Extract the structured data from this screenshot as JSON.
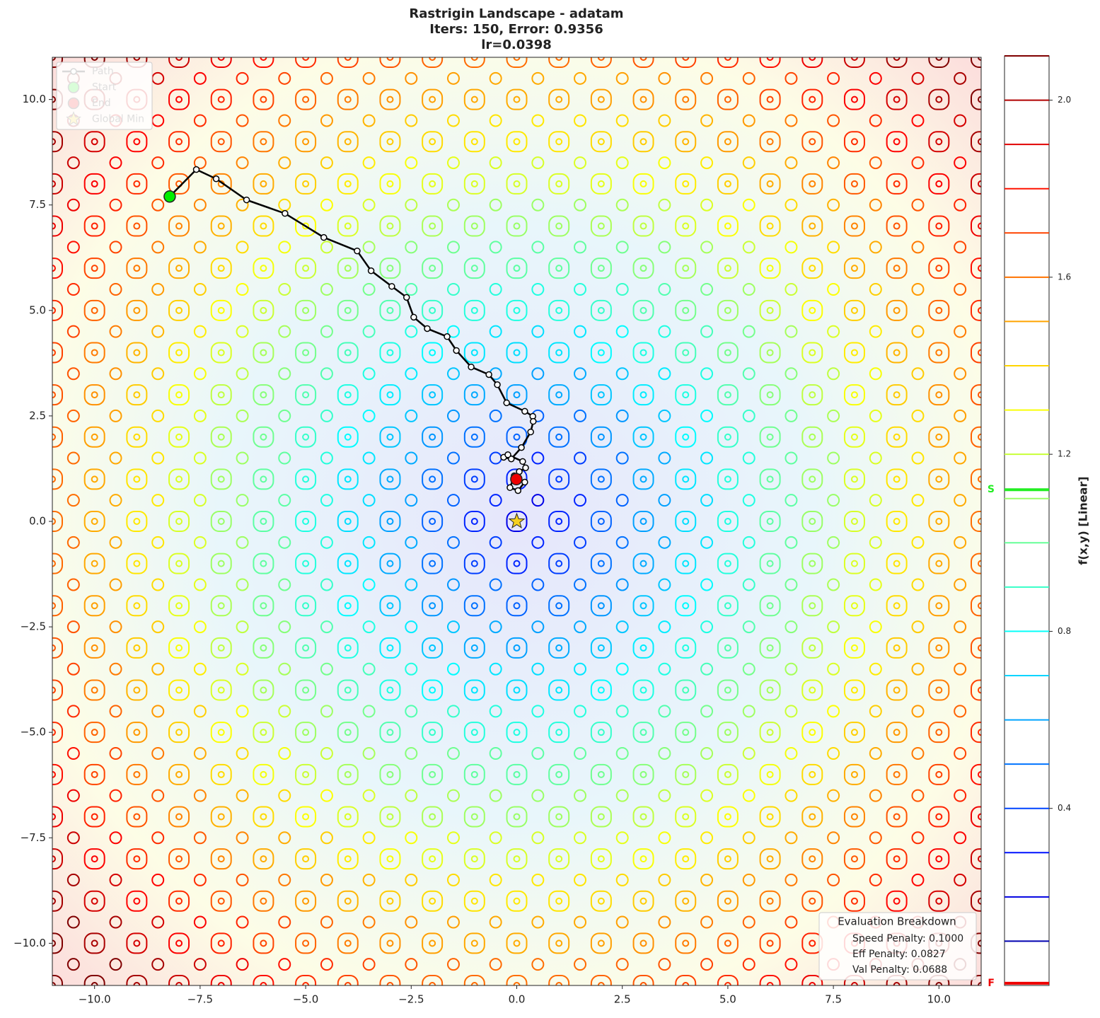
{
  "chart_data": {
    "type": "contour",
    "title_lines": [
      "Rastrigin Landscape - adatam",
      "Iters: 150, Error: 0.9356",
      "lr=0.0398"
    ],
    "series": [
      {
        "name": "Path",
        "color": "#000000",
        "x": [
          -8.22,
          -7.59,
          -7.12,
          -6.4,
          -5.49,
          -4.57,
          -3.78,
          -3.45,
          -2.96,
          -2.61,
          -2.44,
          -2.12,
          -1.65,
          -1.43,
          -1.08,
          -0.66,
          -0.46,
          -0.24,
          0.19,
          0.38,
          0.39,
          0.33,
          0.11,
          -0.13,
          -0.31,
          -0.21,
          0.14,
          0.21,
          0.06,
          -0.06,
          -0.16,
          0.03,
          0.19,
          -0.01
        ],
        "y": [
          7.7,
          8.34,
          8.12,
          7.62,
          7.3,
          6.73,
          6.41,
          5.94,
          5.57,
          5.31,
          4.84,
          4.57,
          4.38,
          4.05,
          3.66,
          3.48,
          3.24,
          2.81,
          2.61,
          2.49,
          2.37,
          2.12,
          1.75,
          1.48,
          1.52,
          1.58,
          1.42,
          1.27,
          1.18,
          1.08,
          0.8,
          0.73,
          0.93,
          1.0
        ]
      }
    ],
    "points": [
      {
        "name": "Start",
        "color": "#00ee00",
        "x": -8.22,
        "y": 7.7,
        "marker": "circle"
      },
      {
        "name": "End",
        "color": "#ee0000",
        "x": -0.01,
        "y": 1.0,
        "marker": "circle"
      },
      {
        "name": "Global Min",
        "color": "#f5d020",
        "x": 0,
        "y": 0,
        "marker": "star"
      }
    ],
    "legend": "upper left",
    "xlim": [
      -11,
      11
    ],
    "ylim": [
      -11,
      11
    ],
    "xticks": [
      {
        "value": -10,
        "label": "−10.0"
      },
      {
        "value": -7.5,
        "label": "−7.5"
      },
      {
        "value": -5,
        "label": "−5.0"
      },
      {
        "value": -2.5,
        "label": "−2.5"
      },
      {
        "value": 0,
        "label": "0.0"
      },
      2.5,
      {
        "value": 5,
        "label": "5.0"
      },
      7.5,
      {
        "value": 10,
        "label": "10.0"
      }
    ],
    "yticks": [
      {
        "value": -10,
        "label": "−10.0"
      },
      {
        "value": -7.5,
        "label": "−7.5"
      },
      {
        "value": -5,
        "label": "−5.0"
      },
      {
        "value": -2.5,
        "label": "−2.5"
      },
      {
        "value": 0,
        "label": "0.0"
      },
      2.5,
      {
        "value": 5,
        "label": "5.0"
      },
      7.5,
      {
        "value": 10,
        "label": "10.0"
      }
    ],
    "colorbar": {
      "label": "f(x,y) [Linear]",
      "lim": [
        0,
        2.1
      ],
      "colormap": "jet",
      "ticks": [
        0.4,
        0.8,
        1.2,
        1.6,
        {
          "value": 2,
          "label": "2.0"
        }
      ],
      "levels": [
        0.1,
        0.2,
        0.3,
        0.4,
        0.5,
        0.6,
        0.7,
        0.8,
        0.9,
        1.0,
        1.1,
        1.2,
        1.3,
        1.4,
        1.5,
        1.6,
        1.7,
        1.8,
        1.9,
        2.0,
        2.1
      ],
      "markers": [
        {
          "label": "S",
          "value": 1.12,
          "color": "#22ee22"
        },
        {
          "label": "F",
          "value": 0.005,
          "color": "#ee0000"
        }
      ]
    },
    "annotation": {
      "title": "Evaluation Breakdown",
      "lines": [
        "Speed Penalty: 0.1000",
        "Eff Penalty: 0.0827",
        "Val Penalty: 0.0688"
      ]
    }
  }
}
